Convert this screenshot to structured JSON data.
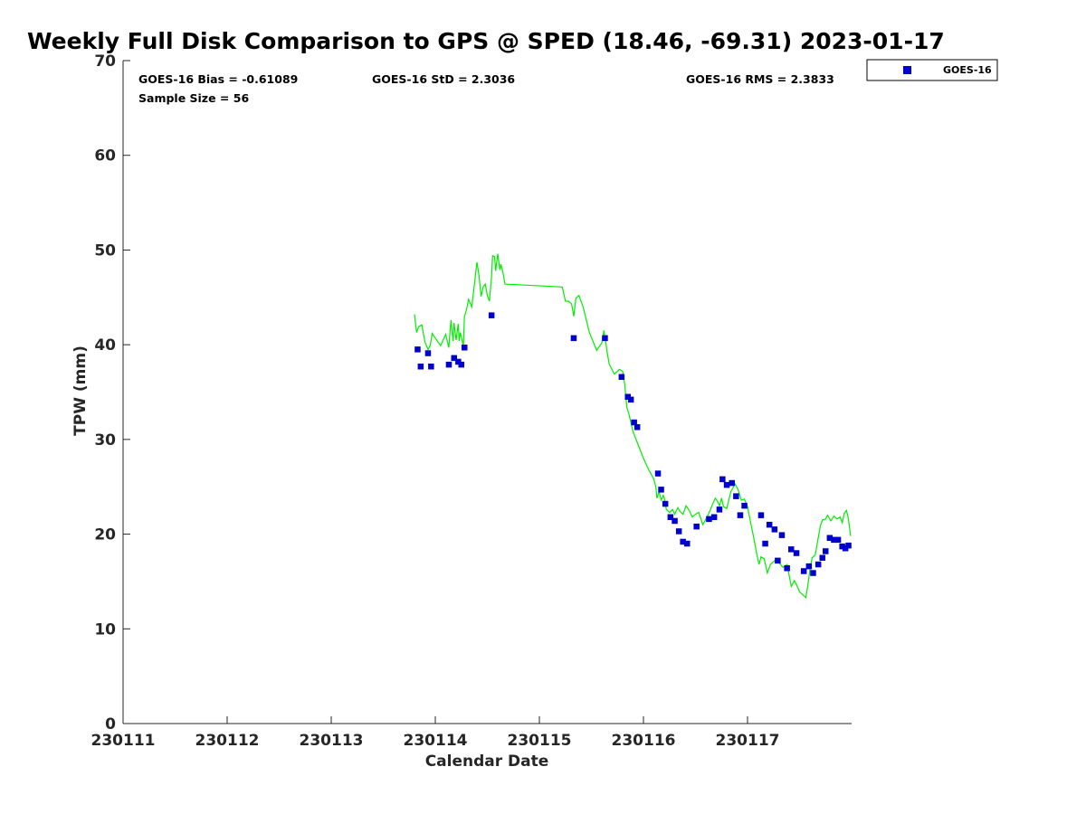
{
  "chart_data": {
    "type": "scatter",
    "title": "Weekly Full Disk Comparison to GPS @ SPED (18.46, -69.31) 2023-01-17",
    "xlabel": "Calendar Date",
    "ylabel": "TPW (mm)",
    "xlim": [
      0,
      7
    ],
    "ylim": [
      0,
      70
    ],
    "x_ticks": [
      0,
      1,
      2,
      3,
      4,
      5,
      6
    ],
    "x_tick_labels": [
      "230111",
      "230112",
      "230113",
      "230114",
      "230115",
      "230116",
      "230117"
    ],
    "y_ticks": [
      0,
      10,
      20,
      30,
      40,
      50,
      60,
      70
    ],
    "y_tick_labels": [
      "0",
      "10",
      "20",
      "30",
      "40",
      "50",
      "60",
      "70"
    ],
    "grid": false,
    "legend_position": "top-right",
    "stats": {
      "bias": "GOES-16 Bias = -0.61089",
      "std": "GOES-16 StD = 2.3036",
      "rms": "GOES-16 RMS = 2.3833",
      "sample_size": "Sample Size = 56"
    },
    "series": [
      {
        "name": "GOES-16",
        "kind": "scatter",
        "color": "#0000cc",
        "marker": "square",
        "x": [
          2.83,
          2.86,
          2.93,
          2.96,
          3.13,
          3.18,
          3.22,
          3.25,
          3.28,
          3.54,
          4.33,
          4.63,
          4.79,
          4.85,
          4.88,
          4.91,
          4.94,
          5.14,
          5.17,
          5.21,
          5.26,
          5.3,
          5.34,
          5.38,
          5.42,
          5.51,
          5.63,
          5.68,
          5.73,
          5.76,
          5.8,
          5.85,
          5.89,
          5.93,
          5.97,
          6.13,
          6.17,
          6.21,
          6.26,
          6.29,
          6.33,
          6.38,
          6.42,
          6.47,
          6.54,
          6.59,
          6.63,
          6.68,
          6.72,
          6.75,
          6.79,
          6.83,
          6.87,
          6.91,
          6.94,
          6.97
        ],
        "y": [
          39.5,
          37.7,
          39.1,
          37.7,
          37.9,
          38.6,
          38.2,
          37.9,
          39.7,
          43.1,
          40.7,
          40.7,
          36.6,
          34.5,
          34.2,
          31.8,
          31.3,
          26.4,
          24.7,
          23.2,
          21.8,
          21.4,
          20.3,
          19.2,
          19.0,
          20.8,
          21.6,
          21.8,
          22.6,
          25.8,
          25.2,
          25.4,
          24.0,
          22.0,
          23.0,
          22.0,
          19.0,
          21.0,
          20.5,
          17.2,
          19.9,
          16.4,
          18.4,
          18.0,
          16.1,
          16.6,
          15.9,
          16.8,
          17.5,
          18.2,
          19.6,
          19.4,
          19.4,
          18.7,
          18.5,
          18.8
        ]
      },
      {
        "name": "GPS",
        "kind": "line",
        "color": "#00ee00",
        "x": [
          2.8,
          2.82,
          2.84,
          2.87,
          2.9,
          2.93,
          2.95,
          2.97,
          3.0,
          3.05,
          3.1,
          3.13,
          3.15,
          3.17,
          3.18,
          3.2,
          3.22,
          3.23,
          3.24,
          3.25,
          3.27,
          3.28,
          3.3,
          3.32,
          3.35,
          3.37,
          3.4,
          3.42,
          3.44,
          3.46,
          3.48,
          3.5,
          3.52,
          3.54,
          3.55,
          3.57,
          3.58,
          3.6,
          3.62,
          3.63,
          3.65,
          3.67,
          4.22,
          4.25,
          4.28,
          4.31,
          4.33,
          4.35,
          4.38,
          4.42,
          4.48,
          4.55,
          4.6,
          4.62,
          4.65,
          4.67,
          4.72,
          4.77,
          4.8,
          4.82,
          4.84,
          4.86,
          4.9,
          4.95,
          5.0,
          5.05,
          5.1,
          5.12,
          5.13,
          5.15,
          5.17,
          5.19,
          5.2,
          5.22,
          5.25,
          5.28,
          5.3,
          5.33,
          5.35,
          5.38,
          5.41,
          5.44,
          5.47,
          5.5,
          5.53,
          5.57,
          5.61,
          5.64,
          5.67,
          5.69,
          5.71,
          5.73,
          5.75,
          5.77,
          5.8,
          5.84,
          5.88,
          5.91,
          5.94,
          5.97,
          6.0,
          6.03,
          6.06,
          6.09,
          6.11,
          6.13,
          6.16,
          6.19,
          6.22,
          6.25,
          6.28,
          6.31,
          6.34,
          6.38,
          6.42,
          6.45,
          6.47,
          6.5,
          6.53,
          6.56,
          6.58,
          6.6,
          6.62,
          6.65,
          6.67,
          6.7,
          6.72,
          6.75,
          6.77,
          6.8,
          6.83,
          6.86,
          6.89,
          6.91,
          6.93,
          6.95,
          6.97,
          6.99
        ],
        "y": [
          43.2,
          41.3,
          41.9,
          42.1,
          40.3,
          39.5,
          39.9,
          41.2,
          40.7,
          39.9,
          41.1,
          39.7,
          42.6,
          40.4,
          42.3,
          40.5,
          42.2,
          40.4,
          41.3,
          40.8,
          39.9,
          43.0,
          43.7,
          44.8,
          44.0,
          45.8,
          48.7,
          47.3,
          45.1,
          46.1,
          46.4,
          45.2,
          44.6,
          47.1,
          49.4,
          49.3,
          47.8,
          49.6,
          47.9,
          48.5,
          47.6,
          46.4,
          46.1,
          44.6,
          44.6,
          44.3,
          43.0,
          44.9,
          45.2,
          44.0,
          41.3,
          39.4,
          40.2,
          41.5,
          39.3,
          38.0,
          36.9,
          37.4,
          37.2,
          35.8,
          33.4,
          32.7,
          30.8,
          29.4,
          28.0,
          26.8,
          25.8,
          24.9,
          23.8,
          24.5,
          23.6,
          24.1,
          23.8,
          22.6,
          22.3,
          22.6,
          22.1,
          22.8,
          22.4,
          22.1,
          23.0,
          22.5,
          21.8,
          22.1,
          22.3,
          21.0,
          21.8,
          22.5,
          23.3,
          23.8,
          23.5,
          23.0,
          23.8,
          22.9,
          22.7,
          24.5,
          25.3,
          24.7,
          23.6,
          23.7,
          22.9,
          21.2,
          19.6,
          17.8,
          16.8,
          17.6,
          17.4,
          15.9,
          16.8,
          17.1,
          17.3,
          16.9,
          16.5,
          16.8,
          14.5,
          15.1,
          14.7,
          13.9,
          13.6,
          13.3,
          14.6,
          16.3,
          17.5,
          17.8,
          19.0,
          20.9,
          21.5,
          21.6,
          22.0,
          21.4,
          21.9,
          21.6,
          21.8,
          21.2,
          22.2,
          22.5,
          21.6,
          19.8
        ]
      }
    ]
  }
}
